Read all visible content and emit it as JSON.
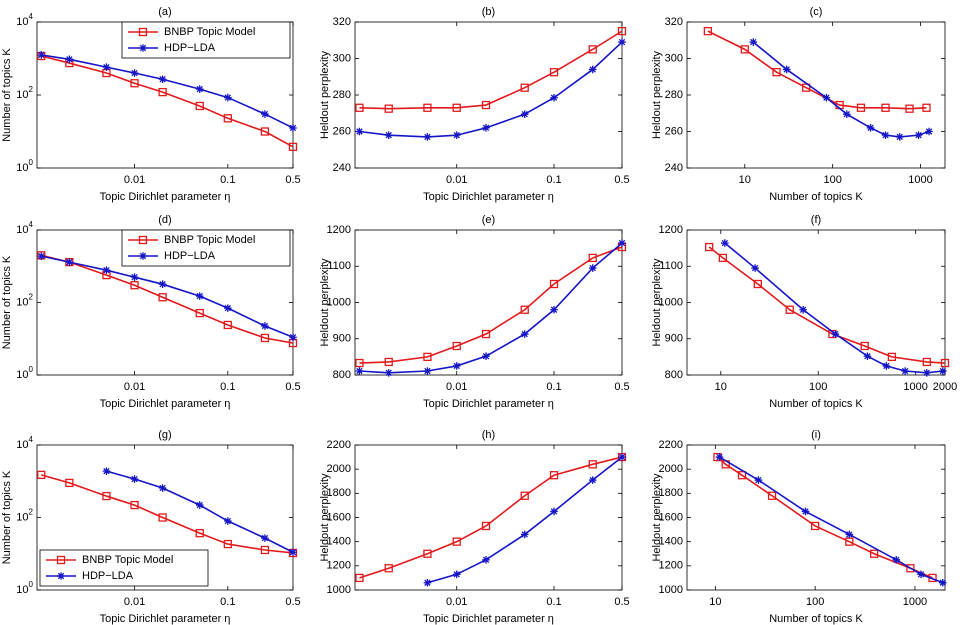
{
  "chart_data": [
    {
      "type": "line",
      "title": "(a)",
      "xlabel": "Topic Dirichlet parameter η",
      "ylabel": "Number of topics K",
      "xscale": "log",
      "yscale": "log",
      "xlim": [
        0.0009,
        0.5
      ],
      "ylim": [
        1,
        10000
      ],
      "xticks": [
        0.01,
        0.1,
        0.5
      ],
      "yticks": [
        {
          "value": 1,
          "label": "10^0"
        },
        {
          "value": 100,
          "label": "10^2"
        },
        {
          "value": 10000,
          "label": "10^4"
        }
      ],
      "legend": "upper right",
      "series": [
        {
          "name": "BNBP Topic Model",
          "color": "#e31a1c",
          "marker": "square",
          "x": [
            0.001,
            0.002,
            0.005,
            0.01,
            0.02,
            0.05,
            0.1,
            0.25,
            0.5
          ],
          "values": [
            1170,
            750,
            400,
            210,
            120,
            50,
            23,
            10,
            3.8
          ]
        },
        {
          "name": "HDP−LDA",
          "color": "#1515c8",
          "marker": "star",
          "x": [
            0.001,
            0.002,
            0.005,
            0.01,
            0.02,
            0.05,
            0.1,
            0.25,
            0.5
          ],
          "values": [
            1250,
            950,
            580,
            400,
            270,
            145,
            85,
            30,
            12.5
          ]
        }
      ]
    },
    {
      "type": "line",
      "title": "(b)",
      "xlabel": "Topic Dirichlet parameter η",
      "ylabel": "Heldout perplexity",
      "xscale": "log",
      "yscale": "linear",
      "xlim": [
        0.0009,
        0.5
      ],
      "ylim": [
        240,
        320
      ],
      "xticks": [
        0.01,
        0.1,
        0.5
      ],
      "yticks": [
        240,
        260,
        280,
        300,
        320
      ],
      "series": [
        {
          "color": "#e31a1c",
          "marker": "square",
          "x": [
            0.001,
            0.002,
            0.005,
            0.01,
            0.02,
            0.05,
            0.1,
            0.25,
            0.5
          ],
          "values": [
            273,
            272.5,
            273,
            273,
            274.5,
            284,
            292.5,
            305,
            315
          ]
        },
        {
          "color": "#1515c8",
          "marker": "star",
          "x": [
            0.001,
            0.002,
            0.005,
            0.01,
            0.02,
            0.05,
            0.1,
            0.25,
            0.5
          ],
          "values": [
            260,
            258,
            257,
            258,
            262,
            269.5,
            278.5,
            294,
            309
          ]
        }
      ]
    },
    {
      "type": "line",
      "title": "(c)",
      "xlabel": "Number of topics K",
      "ylabel": "Heldout perplexity",
      "xscale": "log",
      "yscale": "linear",
      "xlim": [
        2.2,
        1900
      ],
      "ylim": [
        240,
        320
      ],
      "xticks": [
        10,
        100,
        1000
      ],
      "yticks": [
        240,
        260,
        280,
        300,
        320
      ],
      "series": [
        {
          "color": "#e31a1c",
          "marker": "square",
          "x": [
            3.8,
            10,
            23,
            50,
            120,
            210,
            400,
            750,
            1170
          ],
          "values": [
            315,
            305,
            292.5,
            284,
            274.5,
            273,
            273,
            272.5,
            273
          ]
        },
        {
          "color": "#1515c8",
          "marker": "star",
          "x": [
            12.5,
            30,
            85,
            145,
            270,
            400,
            580,
            950,
            1250
          ],
          "values": [
            309,
            294,
            278.5,
            269.5,
            262,
            258,
            257,
            258,
            260
          ]
        }
      ]
    },
    {
      "type": "line",
      "title": "(d)",
      "xlabel": "Topic Dirichlet parameter η",
      "ylabel": "Number of topics K",
      "xscale": "log",
      "yscale": "log",
      "xlim": [
        0.0009,
        0.5
      ],
      "ylim": [
        1,
        10000
      ],
      "xticks": [
        0.01,
        0.1,
        0.5
      ],
      "yticks": [
        {
          "value": 1,
          "label": "10^0"
        },
        {
          "value": 100,
          "label": "10^2"
        },
        {
          "value": 10000,
          "label": "10^4"
        }
      ],
      "legend": "upper right",
      "series": [
        {
          "name": "BNBP Topic Model",
          "color": "#e31a1c",
          "marker": "square",
          "x": [
            0.001,
            0.002,
            0.005,
            0.01,
            0.02,
            0.05,
            0.1,
            0.25,
            0.5
          ],
          "values": [
            2000,
            1300,
            570,
            300,
            140,
            51,
            24,
            10.5,
            7.6
          ]
        },
        {
          "name": "HDP−LDA",
          "color": "#1515c8",
          "marker": "star",
          "x": [
            0.001,
            0.002,
            0.005,
            0.01,
            0.02,
            0.05,
            0.1,
            0.25,
            0.5
          ],
          "values": [
            1900,
            1300,
            780,
            500,
            320,
            150,
            70,
            22.5,
            11
          ]
        }
      ]
    },
    {
      "type": "line",
      "title": "(e)",
      "xlabel": "Topic Dirichlet parameter η",
      "ylabel": "Heldout perplexity",
      "xscale": "log",
      "yscale": "linear",
      "xlim": [
        0.0009,
        0.5
      ],
      "ylim": [
        800,
        1200
      ],
      "xticks": [
        0.01,
        0.1,
        0.5
      ],
      "yticks": [
        800,
        900,
        1000,
        1100,
        1200
      ],
      "series": [
        {
          "color": "#e31a1c",
          "marker": "square",
          "x": [
            0.001,
            0.002,
            0.005,
            0.01,
            0.02,
            0.05,
            0.1,
            0.25,
            0.5
          ],
          "values": [
            833,
            836,
            850,
            880,
            913,
            980,
            1051,
            1123,
            1153
          ]
        },
        {
          "color": "#1515c8",
          "marker": "star",
          "x": [
            0.001,
            0.002,
            0.005,
            0.01,
            0.02,
            0.05,
            0.1,
            0.25,
            0.5
          ],
          "values": [
            811,
            806,
            811,
            825,
            852,
            913,
            980,
            1095,
            1164
          ]
        }
      ]
    },
    {
      "type": "line",
      "title": "(f)",
      "xlabel": "Number of topics K",
      "ylabel": "Heldout perplexity",
      "xscale": "log",
      "yscale": "linear",
      "xlim": [
        4.5,
        2000
      ],
      "ylim": [
        800,
        1200
      ],
      "xticks": [
        10,
        100,
        1000,
        2000
      ],
      "yticks": [
        800,
        900,
        1000,
        1100,
        1200
      ],
      "series": [
        {
          "color": "#e31a1c",
          "marker": "square",
          "x": [
            7.6,
            10.5,
            24,
            51,
            140,
            300,
            570,
            1300,
            2000
          ],
          "values": [
            1153,
            1123,
            1051,
            980,
            913,
            880,
            850,
            836,
            833
          ]
        },
        {
          "color": "#1515c8",
          "marker": "star",
          "x": [
            11,
            22.5,
            70,
            150,
            320,
            500,
            780,
            1300,
            1900
          ],
          "values": [
            1164,
            1095,
            980,
            913,
            852,
            825,
            811,
            806,
            811
          ]
        }
      ]
    },
    {
      "type": "line",
      "title": "(g)",
      "xlabel": "Topic Dirichlet parameter η",
      "ylabel": "Number of topics K",
      "xscale": "log",
      "yscale": "log",
      "xlim": [
        0.0009,
        0.5
      ],
      "ylim": [
        1,
        10000
      ],
      "xticks": [
        0.01,
        0.1,
        0.5
      ],
      "yticks": [
        {
          "value": 1,
          "label": "10^0"
        },
        {
          "value": 100,
          "label": "10^2"
        },
        {
          "value": 10000,
          "label": "10^4"
        }
      ],
      "legend": "lower left",
      "series": [
        {
          "name": "BNBP Topic Model",
          "color": "#e31a1c",
          "marker": "square",
          "x": [
            0.001,
            0.002,
            0.005,
            0.01,
            0.02,
            0.05,
            0.1,
            0.25,
            0.5
          ],
          "values": [
            1500,
            900,
            390,
            220,
            100,
            37,
            18.5,
            12.7,
            10.5
          ]
        },
        {
          "name": "HDP−LDA",
          "color": "#1515c8",
          "marker": "star",
          "x": [
            0.005,
            0.01,
            0.02,
            0.05,
            0.1,
            0.25,
            0.5
          ],
          "values": [
            1900,
            1150,
            650,
            220,
            80,
            27,
            11
          ]
        }
      ]
    },
    {
      "type": "line",
      "title": "(h)",
      "xlabel": "Topic Dirichlet parameter η",
      "ylabel": "Heldout perplexity",
      "xscale": "log",
      "yscale": "linear",
      "xlim": [
        0.0009,
        0.5
      ],
      "ylim": [
        1000,
        2200
      ],
      "xticks": [
        0.01,
        0.1,
        0.5
      ],
      "yticks": [
        1000,
        1200,
        1400,
        1600,
        1800,
        2000,
        2200
      ],
      "series": [
        {
          "color": "#e31a1c",
          "marker": "square",
          "x": [
            0.001,
            0.002,
            0.005,
            0.01,
            0.02,
            0.05,
            0.1,
            0.25,
            0.5
          ],
          "values": [
            1100,
            1180,
            1300,
            1400,
            1530,
            1780,
            1950,
            2040,
            2100
          ]
        },
        {
          "color": "#1515c8",
          "marker": "star",
          "x": [
            0.005,
            0.01,
            0.02,
            0.05,
            0.1,
            0.25,
            0.5
          ],
          "values": [
            1060,
            1130,
            1250,
            1460,
            1650,
            1910,
            2100
          ]
        }
      ]
    },
    {
      "type": "line",
      "title": "(i)",
      "xlabel": "Number of topics K",
      "ylabel": "Heldout perplexity",
      "xscale": "log",
      "yscale": "linear",
      "xlim": [
        5.2,
        2000
      ],
      "ylim": [
        1000,
        2200
      ],
      "xticks": [
        10,
        100,
        1000
      ],
      "yticks": [
        1000,
        1200,
        1400,
        1600,
        1800,
        2000,
        2200
      ],
      "series": [
        {
          "color": "#e31a1c",
          "marker": "square",
          "x": [
            10.5,
            12.7,
            18.5,
            37,
            100,
            220,
            390,
            900,
            1500
          ],
          "values": [
            2100,
            2040,
            1950,
            1780,
            1530,
            1400,
            1300,
            1180,
            1100
          ]
        },
        {
          "color": "#1515c8",
          "marker": "star",
          "x": [
            11,
            27,
            80,
            220,
            650,
            1150,
            1900
          ],
          "values": [
            2100,
            1910,
            1650,
            1460,
            1250,
            1130,
            1060
          ]
        }
      ]
    }
  ]
}
